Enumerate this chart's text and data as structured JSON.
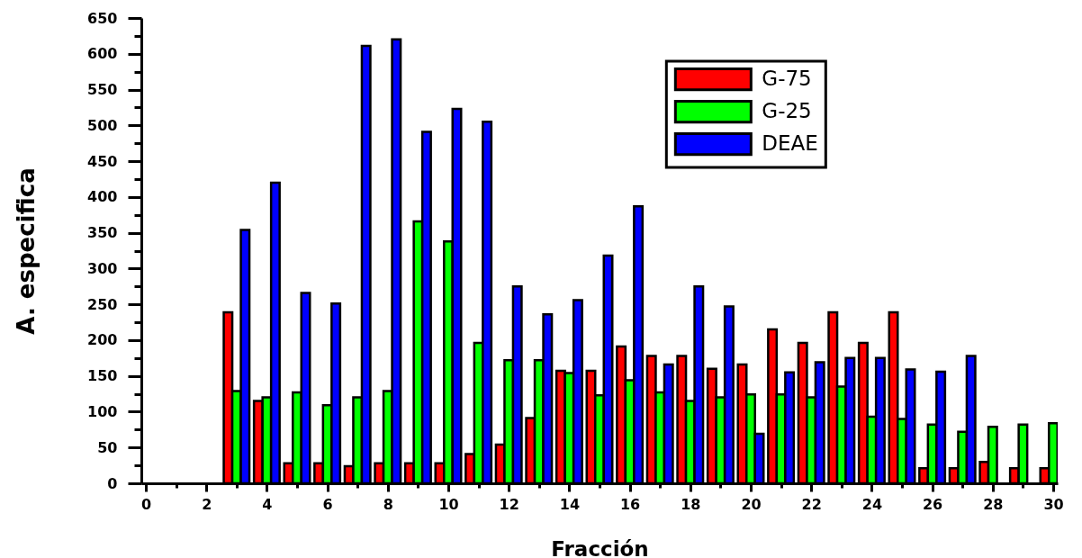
{
  "chart_data": {
    "type": "bar",
    "xlabel": "Fracción",
    "ylabel": "A. especifica",
    "x": [
      3,
      4,
      5,
      6,
      7,
      8,
      9,
      10,
      11,
      12,
      13,
      14,
      15,
      16,
      17,
      18,
      19,
      20,
      21,
      22,
      23,
      24,
      25,
      26,
      27,
      28,
      29,
      30
    ],
    "series": [
      {
        "name": "G-75",
        "color": "#ff0000",
        "values": [
          239,
          115,
          28,
          28,
          24,
          28,
          28,
          28,
          41,
          54,
          91,
          157,
          157,
          191,
          178,
          178,
          160,
          166,
          215,
          196,
          239,
          196,
          239,
          21,
          21,
          30,
          21,
          21
        ]
      },
      {
        "name": "G-25",
        "color": "#00ff00",
        "values": [
          129,
          120,
          127,
          109,
          120,
          129,
          366,
          338,
          196,
          172,
          172,
          154,
          123,
          144,
          127,
          115,
          120,
          124,
          124,
          120,
          135,
          93,
          90,
          82,
          72,
          79,
          82,
          84
        ]
      },
      {
        "name": "DEAE",
        "color": "#0000ff",
        "values": [
          354,
          420,
          266,
          251,
          611,
          620,
          491,
          523,
          505,
          275,
          236,
          256,
          318,
          387,
          166,
          275,
          247,
          69,
          155,
          169,
          175,
          175,
          159,
          156,
          178,
          null,
          null,
          null
        ]
      }
    ],
    "xlim": [
      0,
      30
    ],
    "xticks": [
      0,
      {
        "value": 1,
        "label": null
      },
      2,
      {
        "value": 3,
        "label": null
      },
      4,
      {
        "value": 5,
        "label": null
      },
      6,
      {
        "value": 7,
        "label": null
      },
      8,
      {
        "value": 9,
        "label": null
      },
      10,
      {
        "value": 11,
        "label": null
      },
      12,
      {
        "value": 13,
        "label": null
      },
      14,
      {
        "value": 15,
        "label": null
      },
      16,
      {
        "value": 17,
        "label": null
      },
      18,
      {
        "value": 19,
        "label": null
      },
      20,
      {
        "value": 21,
        "label": null
      },
      22,
      {
        "value": 23,
        "label": null
      },
      24,
      {
        "value": 25,
        "label": null
      },
      26,
      {
        "value": 27,
        "label": null
      },
      28,
      {
        "value": 29,
        "label": null
      },
      30
    ],
    "ylim": [
      0,
      650
    ],
    "yticks": [
      0,
      {
        "value": 25,
        "label": null
      },
      50,
      {
        "value": 75,
        "label": null
      },
      100,
      {
        "value": 125,
        "label": null
      },
      150,
      {
        "value": 175,
        "label": null
      },
      200,
      {
        "value": 225,
        "label": null
      },
      250,
      {
        "value": 275,
        "label": null
      },
      300,
      {
        "value": 325,
        "label": null
      },
      350,
      {
        "value": 375,
        "label": null
      },
      400,
      {
        "value": 425,
        "label": null
      },
      450,
      {
        "value": 475,
        "label": null
      },
      500,
      {
        "value": 525,
        "label": null
      },
      550,
      {
        "value": 575,
        "label": null
      },
      600,
      {
        "value": 625,
        "label": null
      },
      650
    ],
    "legend": "top right",
    "grid": false
  }
}
